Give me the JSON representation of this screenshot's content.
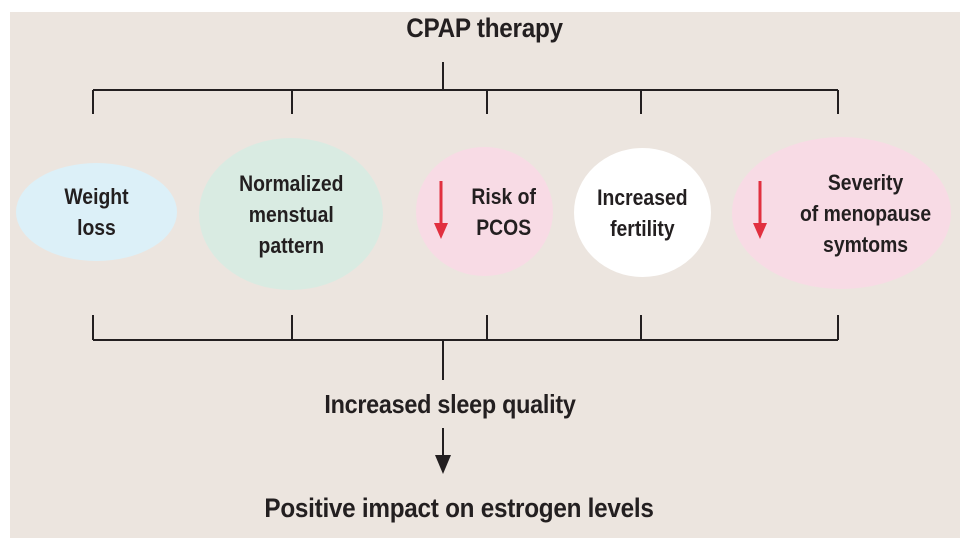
{
  "top": {
    "label": "CPAP therapy"
  },
  "outcomes": [
    {
      "text": "Weight\nloss",
      "fill": "#dcf0f8",
      "decrease_arrow": false
    },
    {
      "text": "Normalized\nmenstual\npattern",
      "fill": "#d9ebe2",
      "decrease_arrow": false
    },
    {
      "text": "Risk of\nPCOS",
      "fill": "#f8dbe5",
      "decrease_arrow": true
    },
    {
      "text": "Increased\nfertility",
      "fill": "#ffffff",
      "decrease_arrow": false
    },
    {
      "text": "Severity\nof menopause\nsymtoms",
      "fill": "#f8dbe5",
      "decrease_arrow": true
    }
  ],
  "middle": {
    "label": "Increased sleep quality"
  },
  "bottom": {
    "label": "Positive impact on estrogen levels"
  },
  "colors": {
    "background": "#ece5df",
    "lines": "#231f20",
    "decrease_arrow": "#e1303f"
  }
}
